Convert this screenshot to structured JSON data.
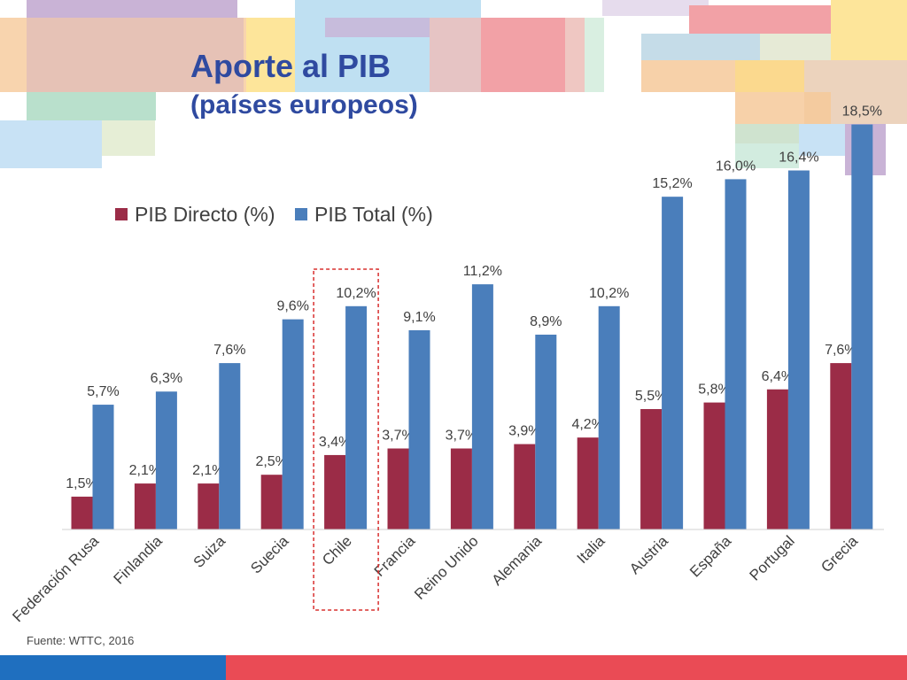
{
  "slide": {
    "title": "Aporte al PIB",
    "subtitle": "(países europeos)",
    "source": "Fuente: WTTC, 2016"
  },
  "colors": {
    "directo": "#9b2c47",
    "total": "#4a7ebb",
    "title": "#2f4aa0",
    "highlight": "#d9302f",
    "footer_blue": "#1f6fbf",
    "footer_red": "#ea4b55"
  },
  "chart_data": {
    "type": "bar",
    "title": "",
    "xlabel": "",
    "ylabel": "",
    "ylim": [
      0,
      20
    ],
    "grid": false,
    "legend_position": "top-left",
    "highlighted_category": "Chile",
    "categories": [
      "Federación Rusa",
      "Finlandia",
      "Suiza",
      "Suecia",
      "Chile",
      "Francia",
      "Reino Unido",
      "Alemania",
      "Italia",
      "Austria",
      "España",
      "Portugal",
      "Grecia"
    ],
    "series": [
      {
        "name": "PIB Directo (%)",
        "values": [
          1.5,
          2.1,
          2.1,
          2.5,
          3.4,
          3.7,
          3.7,
          3.9,
          4.2,
          5.5,
          5.8,
          6.4,
          7.6
        ],
        "labels": [
          "1,5%",
          "2,1%",
          "2,1%",
          "2,5%",
          "3,4%",
          "3,7%",
          "3,7%",
          "3,9%",
          "4,2%",
          "5,5%",
          "5,8%",
          "6,4%",
          "7,6%"
        ]
      },
      {
        "name": "PIB Total (%)",
        "values": [
          5.7,
          6.3,
          7.6,
          9.6,
          10.2,
          9.1,
          11.2,
          8.9,
          10.2,
          15.2,
          16.0,
          16.4,
          18.5
        ],
        "labels": [
          "5,7%",
          "6,3%",
          "7,6%",
          "9,6%",
          "10,2%",
          "9,1%",
          "11,2%",
          "8,9%",
          "10,2%",
          "15,2%",
          "16,0%",
          "16,4%",
          "18,5%"
        ]
      }
    ]
  }
}
